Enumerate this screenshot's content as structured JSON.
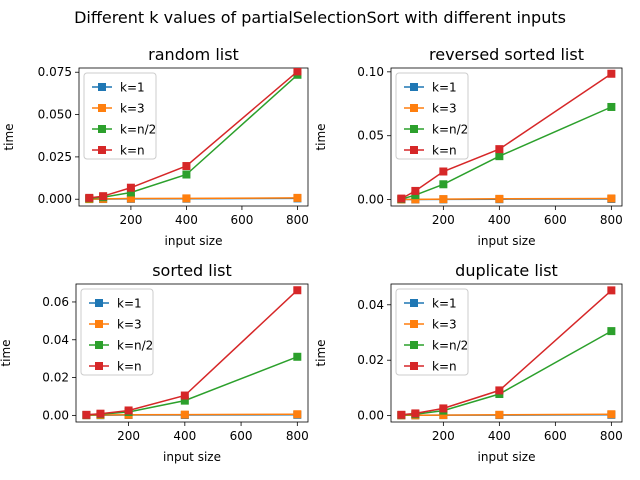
{
  "figure_title": "Different k values of partialSelectionSort with different inputs",
  "colors": {
    "k=1": "#1f77b4",
    "k=3": "#ff7f0e",
    "k=n/2": "#2ca02c",
    "k=n": "#d62728"
  },
  "chart_data": [
    {
      "type": "line",
      "title": "random list",
      "xlabel": "input size",
      "ylabel": "time",
      "x": [
        50,
        100,
        200,
        400,
        800
      ],
      "xlim": [
        13,
        838
      ],
      "ylim": [
        -0.004,
        0.0775
      ],
      "xticks": [
        200,
        400,
        600,
        800
      ],
      "yticks": [
        0.0,
        0.025,
        0.05,
        0.075
      ],
      "ytick_labels": [
        "0.000",
        "0.025",
        "0.050",
        "0.075"
      ],
      "legend_position": "upper-left",
      "grid": false,
      "series": [
        {
          "name": "k=1",
          "values": [
            0.0001,
            0.0001,
            0.0002,
            0.0003,
            0.0005
          ]
        },
        {
          "name": "k=3",
          "values": [
            0.0001,
            0.0002,
            0.0004,
            0.0005,
            0.0008
          ]
        },
        {
          "name": "k=n/2",
          "values": [
            0.0005,
            0.0012,
            0.004,
            0.0146,
            0.0735
          ]
        },
        {
          "name": "k=n",
          "values": [
            0.0008,
            0.0018,
            0.0068,
            0.0196,
            0.0755
          ]
        }
      ]
    },
    {
      "type": "line",
      "title": "reversed sorted list",
      "xlabel": "input size",
      "ylabel": "time",
      "x": [
        50,
        100,
        200,
        400,
        800
      ],
      "xlim": [
        13,
        838
      ],
      "ylim": [
        -0.005,
        0.103
      ],
      "xticks": [
        200,
        400,
        600,
        800
      ],
      "yticks": [
        0.0,
        0.05,
        0.1
      ],
      "ytick_labels": [
        "0.00",
        "0.05",
        "0.10"
      ],
      "legend_position": "upper-left",
      "grid": false,
      "series": [
        {
          "name": "k=1",
          "values": [
            0.0001,
            0.0001,
            0.0002,
            0.0003,
            0.0005
          ]
        },
        {
          "name": "k=3",
          "values": [
            0.0001,
            0.0002,
            0.0004,
            0.0006,
            0.0009
          ]
        },
        {
          "name": "k=n/2",
          "values": [
            0.0004,
            0.0035,
            0.012,
            0.034,
            0.0725
          ]
        },
        {
          "name": "k=n",
          "values": [
            0.0008,
            0.0068,
            0.022,
            0.0395,
            0.0985
          ]
        }
      ]
    },
    {
      "type": "line",
      "title": "sorted list",
      "xlabel": "input size",
      "ylabel": "time",
      "x": [
        50,
        100,
        200,
        400,
        800
      ],
      "xlim": [
        13,
        838
      ],
      "ylim": [
        -0.0035,
        0.0695
      ],
      "xticks": [
        200,
        400,
        600,
        800
      ],
      "yticks": [
        0.0,
        0.02,
        0.04,
        0.06
      ],
      "ytick_labels": [
        "0.00",
        "0.02",
        "0.04",
        "0.06"
      ],
      "legend_position": "upper-left",
      "grid": false,
      "series": [
        {
          "name": "k=1",
          "values": [
            0.0001,
            0.0001,
            0.0002,
            0.0002,
            0.0003
          ]
        },
        {
          "name": "k=3",
          "values": [
            0.0001,
            0.0002,
            0.0003,
            0.0004,
            0.0006
          ]
        },
        {
          "name": "k=n/2",
          "values": [
            0.0002,
            0.0006,
            0.0018,
            0.0078,
            0.031
          ]
        },
        {
          "name": "k=n",
          "values": [
            0.0003,
            0.0009,
            0.0026,
            0.0105,
            0.0662
          ]
        }
      ]
    },
    {
      "type": "line",
      "title": "duplicate list",
      "xlabel": "input size",
      "ylabel": "time",
      "x": [
        50,
        100,
        200,
        400,
        800
      ],
      "xlim": [
        13,
        838
      ],
      "ylim": [
        -0.0023,
        0.0475
      ],
      "xticks": [
        200,
        400,
        600,
        800
      ],
      "yticks": [
        0.0,
        0.02,
        0.04
      ],
      "ytick_labels": [
        "0.00",
        "0.02",
        "0.04"
      ],
      "legend_position": "upper-left",
      "grid": false,
      "series": [
        {
          "name": "k=1",
          "values": [
            0.0001,
            0.0001,
            0.0002,
            0.0002,
            0.0003
          ]
        },
        {
          "name": "k=3",
          "values": [
            0.0001,
            0.0001,
            0.0002,
            0.0003,
            0.0005
          ]
        },
        {
          "name": "k=n/2",
          "values": [
            0.0002,
            0.0005,
            0.0018,
            0.0078,
            0.0305
          ]
        },
        {
          "name": "k=n",
          "values": [
            0.0003,
            0.0008,
            0.0026,
            0.0091,
            0.0452
          ]
        }
      ]
    }
  ]
}
